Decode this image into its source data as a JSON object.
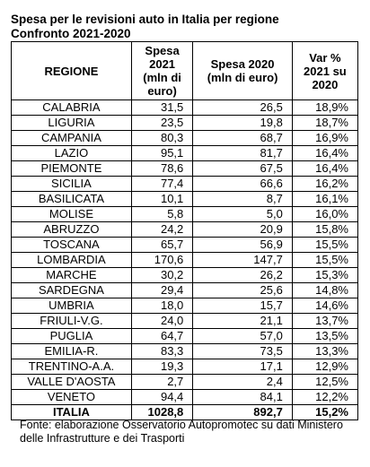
{
  "header": {
    "title": [
      "Spesa per le revisioni auto in Italia per regione",
      "Confronto 2021-2020"
    ]
  },
  "table": {
    "headers": [
      [
        "REGIONE"
      ],
      [
        "Spesa",
        "2021",
        "(mln di",
        "euro)"
      ],
      [
        "Spesa 2020",
        "(mln di euro)"
      ],
      [
        "Var %",
        "2021 su",
        "2020"
      ]
    ],
    "rows": [
      [
        "CALABRIA",
        "31,5",
        "26,5",
        "18,9%"
      ],
      [
        "LIGURIA",
        "23,5",
        "19,8",
        "18,7%"
      ],
      [
        "CAMPANIA",
        "80,3",
        "68,7",
        "16,9%"
      ],
      [
        "LAZIO",
        "95,1",
        "81,7",
        "16,4%"
      ],
      [
        "PIEMONTE",
        "78,6",
        "67,5",
        "16,4%"
      ],
      [
        "SICILIA",
        "77,4",
        "66,6",
        "16,2%"
      ],
      [
        "BASILICATA",
        "10,1",
        "8,7",
        "16,1%"
      ],
      [
        "MOLISE",
        "5,8",
        "5,0",
        "16,0%"
      ],
      [
        "ABRUZZO",
        "24,2",
        "20,9",
        "15,8%"
      ],
      [
        "TOSCANA",
        "65,7",
        "56,9",
        "15,5%"
      ],
      [
        "LOMBARDIA",
        "170,6",
        "147,7",
        "15,5%"
      ],
      [
        "MARCHE",
        "30,2",
        "26,2",
        "15,3%"
      ],
      [
        "SARDEGNA",
        "29,4",
        "25,6",
        "14,8%"
      ],
      [
        "UMBRIA",
        "18,0",
        "15,7",
        "14,6%"
      ],
      [
        "FRIULI-V.G.",
        "24,0",
        "21,1",
        "13,7%"
      ],
      [
        "PUGLIA",
        "64,7",
        "57,0",
        "13,5%"
      ],
      [
        "EMILIA-R.",
        "83,3",
        "73,5",
        "13,3%"
      ],
      [
        "TRENTINO-A.A.",
        "19,3",
        "17,1",
        "12,9%"
      ],
      [
        "VALLE D'AOSTA",
        "2,7",
        "2,4",
        "12,5%"
      ],
      [
        "VENETO",
        "94,4",
        "84,1",
        "12,2%"
      ]
    ],
    "total": [
      "ITALIA",
      "1028,8",
      "892,7",
      "15,2%"
    ]
  },
  "footer": {
    "source": "Fonte: elaborazione Osservatorio Autopromotec su dati Ministero delle Infrastrutture e dei Trasporti"
  }
}
